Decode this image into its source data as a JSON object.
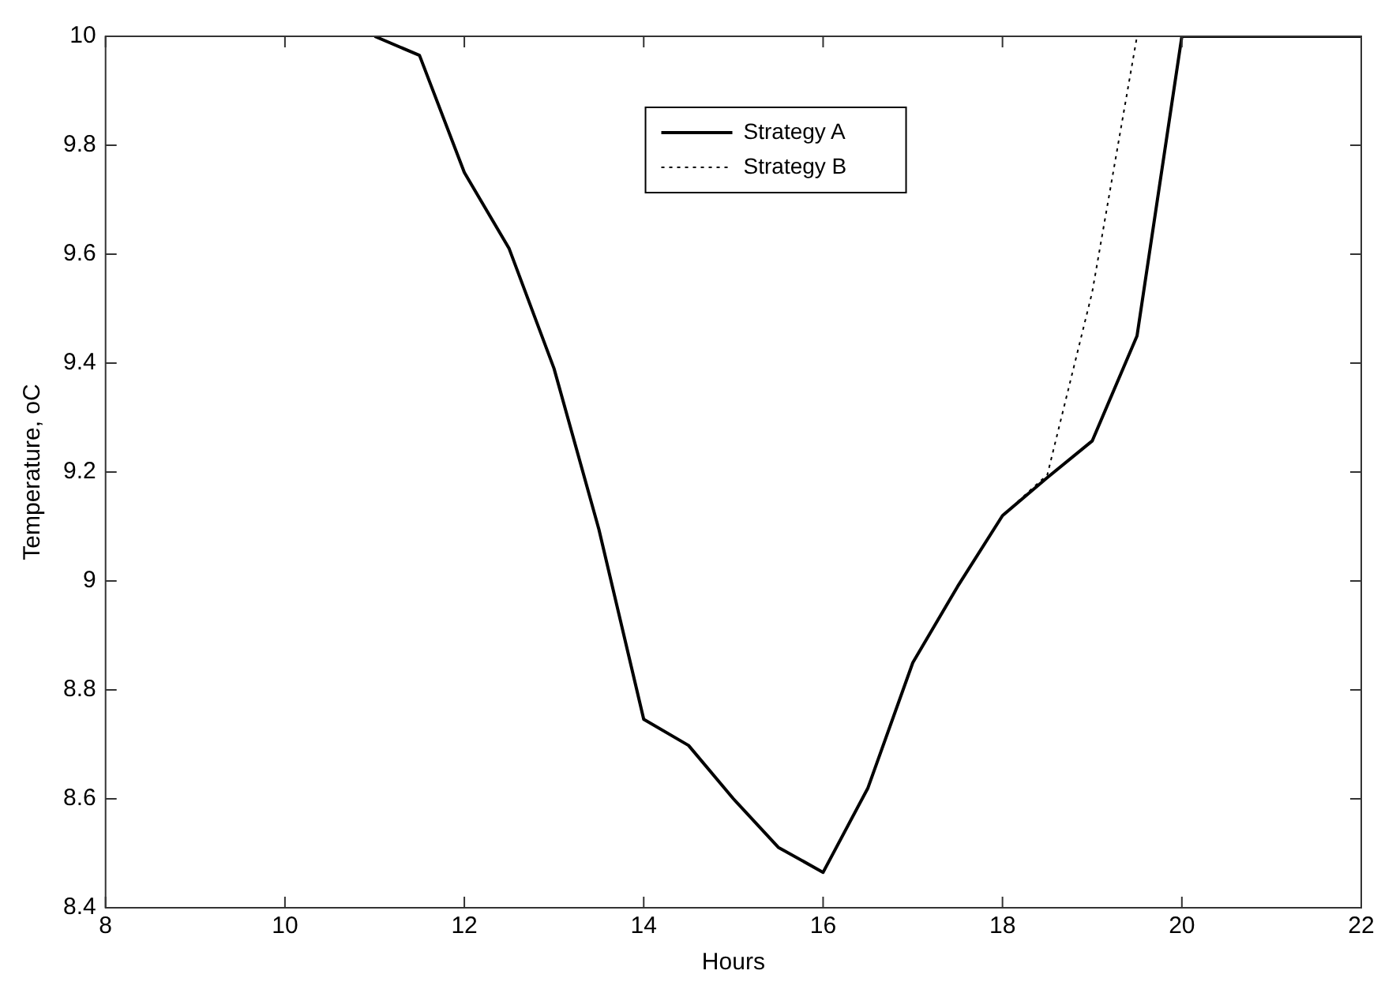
{
  "chart_data": {
    "type": "line",
    "xlabel": "Hours",
    "ylabel": "Temperature, oC",
    "xlim": [
      8,
      22
    ],
    "xticks": [
      8,
      10,
      12,
      14,
      16,
      18,
      20,
      22
    ],
    "ylim": [
      8.4,
      10
    ],
    "yticks": [
      {
        "value": 8.4,
        "label": "8.4"
      },
      {
        "value": 8.6,
        "label": "8.6"
      },
      {
        "value": 8.8,
        "label": "8.8"
      },
      {
        "value": 9,
        "label": "9"
      },
      {
        "value": 9.2,
        "label": "9.2"
      },
      {
        "value": 9.4,
        "label": "9.4"
      },
      {
        "value": 9.6,
        "label": "9.6"
      },
      {
        "value": 9.8,
        "label": "9.8"
      },
      {
        "value": 10,
        "label": "10"
      }
    ],
    "grid": false,
    "legend": "top",
    "marker": "none",
    "series": [
      {
        "name": "Strategy A",
        "color": "#000000",
        "line_style": "solid",
        "x": [
          11,
          11.5,
          12,
          12.5,
          13,
          13.5,
          14,
          14.5,
          15,
          15.5,
          16,
          16.5,
          17,
          17.5,
          18,
          18.5,
          19,
          19.5,
          20,
          20.5,
          21,
          21.5,
          22
        ],
        "values": [
          10,
          9.965,
          9.75,
          9.61,
          9.39,
          9.095,
          8.746,
          8.698,
          8.6,
          8.511,
          8.465,
          8.62,
          8.85,
          8.99,
          9.12,
          9.19,
          9.257,
          9.45,
          10,
          10,
          10,
          10,
          10
        ]
      },
      {
        "name": "Strategy B",
        "color": "#000000",
        "line_style": "dotted",
        "x": [
          11,
          11.5,
          12,
          12.5,
          13,
          13.5,
          14,
          14.5,
          15,
          15.5,
          16,
          16.5,
          17,
          17.5,
          18,
          18.5,
          19,
          19.5,
          20,
          20.5,
          21,
          21.5,
          22
        ],
        "values": [
          10,
          9.965,
          9.75,
          9.61,
          9.39,
          9.095,
          8.746,
          8.698,
          8.6,
          8.511,
          8.465,
          8.62,
          8.85,
          8.99,
          9.12,
          9.195,
          9.53,
          10,
          10,
          10,
          10,
          10,
          10
        ]
      }
    ]
  }
}
